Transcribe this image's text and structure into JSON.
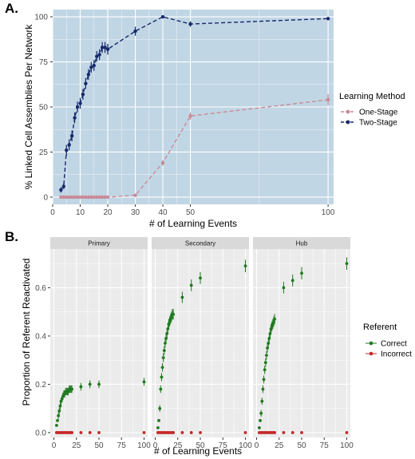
{
  "figure": {
    "panel_a_label": "A.",
    "panel_b_label": "B."
  },
  "chart_data": [
    {
      "type": "line",
      "panel": "A.",
      "xlabel": "# of Learning Events",
      "ylabel": "% Linked Cell Assemblies Per Network",
      "xlim": [
        0,
        102
      ],
      "ylim": [
        -4,
        104
      ],
      "x_ticks": [
        0,
        10,
        20,
        30,
        40,
        50,
        100
      ],
      "y_ticks": [
        0,
        25,
        50,
        75,
        100
      ],
      "grid": true,
      "legend": {
        "title": "Learning Method",
        "position": "right"
      },
      "series": [
        {
          "name": "One-Stage",
          "color": "#c98a96",
          "points": [
            {
              "x": 3,
              "y": 0,
              "err": 0
            },
            {
              "x": 4,
              "y": 0,
              "err": 0
            },
            {
              "x": 5,
              "y": 0,
              "err": 0
            },
            {
              "x": 6,
              "y": 0,
              "err": 0
            },
            {
              "x": 7,
              "y": 0,
              "err": 0
            },
            {
              "x": 8,
              "y": 0,
              "err": 0
            },
            {
              "x": 9,
              "y": 0,
              "err": 0
            },
            {
              "x": 10,
              "y": 0,
              "err": 0
            },
            {
              "x": 11,
              "y": 0,
              "err": 0
            },
            {
              "x": 12,
              "y": 0,
              "err": 0
            },
            {
              "x": 13,
              "y": 0,
              "err": 0
            },
            {
              "x": 14,
              "y": 0,
              "err": 0
            },
            {
              "x": 15,
              "y": 0,
              "err": 0
            },
            {
              "x": 16,
              "y": 0,
              "err": 0
            },
            {
              "x": 17,
              "y": 0,
              "err": 0
            },
            {
              "x": 18,
              "y": 0,
              "err": 0
            },
            {
              "x": 19,
              "y": 0,
              "err": 0
            },
            {
              "x": 20,
              "y": 0,
              "err": 0
            },
            {
              "x": 30,
              "y": 1,
              "err": 0.5
            },
            {
              "x": 40,
              "y": 19,
              "err": 1.5
            },
            {
              "x": 50,
              "y": 45,
              "err": 2
            },
            {
              "x": 100,
              "y": 54,
              "err": 3
            }
          ]
        },
        {
          "name": "Two-Stage",
          "color": "#172a6b",
          "points": [
            {
              "x": 3,
              "y": 4,
              "err": 1.5
            },
            {
              "x": 4,
              "y": 6,
              "err": 1.5
            },
            {
              "x": 5,
              "y": 26,
              "err": 3
            },
            {
              "x": 6,
              "y": 29,
              "err": 3
            },
            {
              "x": 7,
              "y": 34,
              "err": 3
            },
            {
              "x": 8,
              "y": 44,
              "err": 3
            },
            {
              "x": 9,
              "y": 50,
              "err": 3
            },
            {
              "x": 10,
              "y": 52,
              "err": 3
            },
            {
              "x": 11,
              "y": 57,
              "err": 3
            },
            {
              "x": 12,
              "y": 63,
              "err": 3
            },
            {
              "x": 13,
              "y": 68,
              "err": 3
            },
            {
              "x": 14,
              "y": 72,
              "err": 3
            },
            {
              "x": 15,
              "y": 73,
              "err": 3
            },
            {
              "x": 16,
              "y": 78,
              "err": 3
            },
            {
              "x": 17,
              "y": 79,
              "err": 3
            },
            {
              "x": 18,
              "y": 83,
              "err": 3
            },
            {
              "x": 19,
              "y": 83,
              "err": 3
            },
            {
              "x": 20,
              "y": 82,
              "err": 3
            },
            {
              "x": 30,
              "y": 92,
              "err": 2.5
            },
            {
              "x": 40,
              "y": 100,
              "err": 0.5
            },
            {
              "x": 50,
              "y": 96,
              "err": 1.5
            },
            {
              "x": 100,
              "y": 99,
              "err": 0.5
            }
          ]
        }
      ]
    },
    {
      "type": "scatter",
      "panel": "B.",
      "xlabel": "# of Learning Events",
      "ylabel": "Proportion of Referent Reactivated",
      "facets": [
        "Primary",
        "Secondary",
        "Hub"
      ],
      "xlim": [
        -4,
        104
      ],
      "ylim": [
        -0.02,
        0.76
      ],
      "x_ticks": [
        0,
        25,
        50,
        75,
        100
      ],
      "y_ticks": [
        0.0,
        0.2,
        0.4,
        0.6
      ],
      "y_tick_labels": [
        "0.0",
        "0.2",
        "0.4",
        "0.6"
      ],
      "grid": true,
      "legend": {
        "title": "Referent",
        "position": "right"
      },
      "series": [
        {
          "name": "Correct",
          "color": "#1f7a1f",
          "values": {
            "Primary": [
              {
                "x": 3,
                "y": 0.03
              },
              {
                "x": 4,
                "y": 0.05
              },
              {
                "x": 5,
                "y": 0.07
              },
              {
                "x": 6,
                "y": 0.09
              },
              {
                "x": 7,
                "y": 0.11
              },
              {
                "x": 8,
                "y": 0.13
              },
              {
                "x": 9,
                "y": 0.14
              },
              {
                "x": 10,
                "y": 0.15
              },
              {
                "x": 11,
                "y": 0.16
              },
              {
                "x": 12,
                "y": 0.16
              },
              {
                "x": 13,
                "y": 0.17
              },
              {
                "x": 14,
                "y": 0.17
              },
              {
                "x": 15,
                "y": 0.17
              },
              {
                "x": 16,
                "y": 0.17
              },
              {
                "x": 17,
                "y": 0.18
              },
              {
                "x": 18,
                "y": 0.18
              },
              {
                "x": 19,
                "y": 0.18
              },
              {
                "x": 20,
                "y": 0.18
              },
              {
                "x": 30,
                "y": 0.19
              },
              {
                "x": 40,
                "y": 0.2
              },
              {
                "x": 50,
                "y": 0.2
              },
              {
                "x": 100,
                "y": 0.21
              }
            ],
            "Secondary": [
              {
                "x": 3,
                "y": 0.02
              },
              {
                "x": 4,
                "y": 0.05
              },
              {
                "x": 5,
                "y": 0.1
              },
              {
                "x": 6,
                "y": 0.18
              },
              {
                "x": 7,
                "y": 0.23
              },
              {
                "x": 8,
                "y": 0.27
              },
              {
                "x": 9,
                "y": 0.31
              },
              {
                "x": 10,
                "y": 0.34
              },
              {
                "x": 11,
                "y": 0.37
              },
              {
                "x": 12,
                "y": 0.39
              },
              {
                "x": 13,
                "y": 0.41
              },
              {
                "x": 14,
                "y": 0.43
              },
              {
                "x": 15,
                "y": 0.45
              },
              {
                "x": 16,
                "y": 0.46
              },
              {
                "x": 17,
                "y": 0.47
              },
              {
                "x": 18,
                "y": 0.48
              },
              {
                "x": 19,
                "y": 0.49
              },
              {
                "x": 20,
                "y": 0.49
              },
              {
                "x": 30,
                "y": 0.56
              },
              {
                "x": 40,
                "y": 0.61
              },
              {
                "x": 50,
                "y": 0.64
              },
              {
                "x": 100,
                "y": 0.69
              }
            ],
            "Hub": [
              {
                "x": 3,
                "y": 0.02
              },
              {
                "x": 4,
                "y": 0.05
              },
              {
                "x": 5,
                "y": 0.08
              },
              {
                "x": 6,
                "y": 0.13
              },
              {
                "x": 7,
                "y": 0.18
              },
              {
                "x": 8,
                "y": 0.22
              },
              {
                "x": 9,
                "y": 0.26
              },
              {
                "x": 10,
                "y": 0.29
              },
              {
                "x": 11,
                "y": 0.32
              },
              {
                "x": 12,
                "y": 0.35
              },
              {
                "x": 13,
                "y": 0.37
              },
              {
                "x": 14,
                "y": 0.39
              },
              {
                "x": 15,
                "y": 0.41
              },
              {
                "x": 16,
                "y": 0.43
              },
              {
                "x": 17,
                "y": 0.44
              },
              {
                "x": 18,
                "y": 0.45
              },
              {
                "x": 19,
                "y": 0.46
              },
              {
                "x": 20,
                "y": 0.47
              },
              {
                "x": 30,
                "y": 0.6
              },
              {
                "x": 40,
                "y": 0.63
              },
              {
                "x": 50,
                "y": 0.66
              },
              {
                "x": 100,
                "y": 0.7
              }
            ]
          }
        },
        {
          "name": "Incorrect",
          "color": "#c62828",
          "values": {
            "Primary": [
              {
                "x": 3,
                "y": 0
              },
              {
                "x": 5,
                "y": 0
              },
              {
                "x": 7,
                "y": 0
              },
              {
                "x": 9,
                "y": 0
              },
              {
                "x": 11,
                "y": 0
              },
              {
                "x": 13,
                "y": 0
              },
              {
                "x": 15,
                "y": 0
              },
              {
                "x": 17,
                "y": 0
              },
              {
                "x": 19,
                "y": 0
              },
              {
                "x": 20,
                "y": 0
              },
              {
                "x": 30,
                "y": 0
              },
              {
                "x": 40,
                "y": 0
              },
              {
                "x": 50,
                "y": 0
              },
              {
                "x": 100,
                "y": 0
              }
            ],
            "Secondary": [
              {
                "x": 3,
                "y": 0
              },
              {
                "x": 5,
                "y": 0
              },
              {
                "x": 7,
                "y": 0
              },
              {
                "x": 9,
                "y": 0
              },
              {
                "x": 11,
                "y": 0
              },
              {
                "x": 13,
                "y": 0
              },
              {
                "x": 15,
                "y": 0
              },
              {
                "x": 17,
                "y": 0
              },
              {
                "x": 19,
                "y": 0
              },
              {
                "x": 20,
                "y": 0
              },
              {
                "x": 30,
                "y": 0
              },
              {
                "x": 40,
                "y": 0
              },
              {
                "x": 50,
                "y": 0
              },
              {
                "x": 100,
                "y": 0
              }
            ],
            "Hub": [
              {
                "x": 3,
                "y": 0
              },
              {
                "x": 5,
                "y": 0
              },
              {
                "x": 7,
                "y": 0
              },
              {
                "x": 9,
                "y": 0
              },
              {
                "x": 11,
                "y": 0
              },
              {
                "x": 13,
                "y": 0
              },
              {
                "x": 15,
                "y": 0
              },
              {
                "x": 17,
                "y": 0
              },
              {
                "x": 19,
                "y": 0
              },
              {
                "x": 20,
                "y": 0
              },
              {
                "x": 30,
                "y": 0
              },
              {
                "x": 40,
                "y": 0
              },
              {
                "x": 50,
                "y": 0
              },
              {
                "x": 100,
                "y": 0
              }
            ]
          }
        }
      ]
    }
  ]
}
